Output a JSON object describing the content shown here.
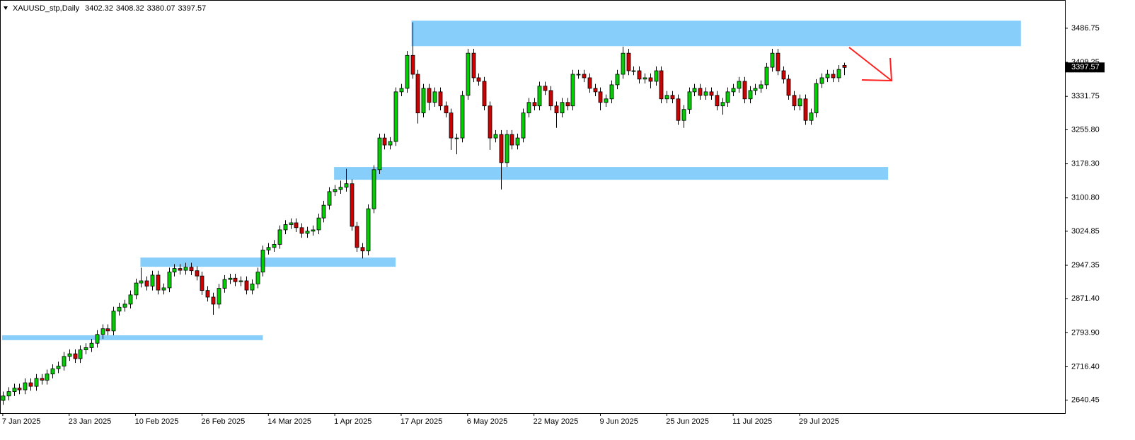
{
  "chart_data": {
    "type": "candlestick",
    "title": "XAUUSD_stp,Daily",
    "categories": [
      "7 Jan 2025",
      null,
      null,
      null,
      null,
      null,
      null,
      null,
      null,
      null,
      null,
      null,
      "23 Jan 2025",
      null,
      null,
      null,
      null,
      null,
      null,
      null,
      null,
      null,
      null,
      null,
      "10 Feb 2025",
      null,
      null,
      null,
      null,
      null,
      null,
      null,
      null,
      null,
      null,
      null,
      "26 Feb 2025",
      null,
      null,
      null,
      null,
      null,
      null,
      null,
      null,
      null,
      null,
      null,
      "14 Mar 2025",
      null,
      null,
      null,
      null,
      null,
      null,
      null,
      null,
      null,
      null,
      null,
      "1 Apr 2025",
      null,
      null,
      null,
      null,
      null,
      null,
      null,
      null,
      null,
      null,
      null,
      "17 Apr 2025",
      null,
      null,
      null,
      null,
      null,
      null,
      null,
      null,
      null,
      null,
      null,
      "6 May 2025",
      null,
      null,
      null,
      null,
      null,
      null,
      null,
      null,
      null,
      null,
      null,
      "22 May 2025",
      null,
      null,
      null,
      null,
      null,
      null,
      null,
      null,
      null,
      null,
      null,
      "9 Jun 2025",
      null,
      null,
      null,
      null,
      null,
      null,
      null,
      null,
      null,
      null,
      null,
      "25 Jun 2025",
      null,
      null,
      null,
      null,
      null,
      null,
      null,
      null,
      null,
      null,
      null,
      "11 Jul 2025",
      null,
      null,
      null,
      null,
      null,
      null,
      null,
      null,
      null,
      null,
      null,
      "29 Jul 2025",
      null,
      null,
      null,
      null,
      null,
      null,
      null,
      null
    ],
    "open": [
      2640,
      2650,
      2660,
      2668,
      2664,
      2680,
      2672,
      2690,
      2686,
      2700,
      2712,
      2718,
      2740,
      2746,
      2735,
      2755,
      2760,
      2770,
      2790,
      2803,
      2798,
      2843,
      2852,
      2859,
      2880,
      2907,
      2912,
      2900,
      2925,
      2891,
      2896,
      2932,
      2940,
      2936,
      2943,
      2935,
      2923,
      2890,
      2875,
      2859,
      2895,
      2915,
      2918,
      2910,
      2912,
      2891,
      2905,
      2932,
      2982,
      2988,
      2995,
      3028,
      3040,
      3044,
      3033,
      3020,
      3025,
      3028,
      3055,
      3084,
      3115,
      3120,
      3125,
      3133,
      3036,
      2988,
      2980,
      3076,
      3165,
      3237,
      3221,
      3229,
      3342,
      3350,
      3425,
      3382,
      3294,
      3350,
      3318,
      3342,
      3310,
      3294,
      3237,
      3237,
      3334,
      3430,
      3374,
      3366,
      3310,
      3237,
      3245,
      3181,
      3245,
      3221,
      3237,
      3294,
      3318,
      3310,
      3355,
      3345,
      3310,
      3294,
      3318,
      3310,
      3382,
      3382,
      3374,
      3350,
      3342,
      3318,
      3326,
      3358,
      3382,
      3430,
      3390,
      3390,
      3371,
      3374,
      3366,
      3390,
      3326,
      3334,
      3326,
      3277,
      3302,
      3342,
      3350,
      3334,
      3342,
      3334,
      3310,
      3318,
      3342,
      3350,
      3366,
      3326,
      3345,
      3350,
      3358,
      3398,
      3430,
      3390,
      3371,
      3334,
      3310,
      3326,
      3277,
      3294,
      3361,
      3374,
      3382,
      3374,
      3402.32
    ],
    "high": [
      2660,
      2670,
      2678,
      2678,
      2690,
      2690,
      2700,
      2700,
      2710,
      2722,
      2728,
      2750,
      2756,
      2756,
      2765,
      2770,
      2780,
      2800,
      2813,
      2813,
      2853,
      2862,
      2869,
      2890,
      2917,
      2942,
      2922,
      2935,
      2935,
      2906,
      2942,
      2950,
      2950,
      2953,
      2953,
      2945,
      2933,
      2900,
      2885,
      2905,
      2925,
      2928,
      2928,
      2922,
      2922,
      2915,
      2942,
      2992,
      2998,
      3005,
      3038,
      3050,
      3054,
      3054,
      3043,
      3035,
      3038,
      3065,
      3094,
      3125,
      3130,
      3140,
      3167,
      3143,
      3046,
      2998,
      3086,
      3175,
      3247,
      3247,
      3239,
      3352,
      3360,
      3435,
      3500,
      3392,
      3360,
      3360,
      3352,
      3352,
      3320,
      3304,
      3247,
      3344,
      3440,
      3440,
      3384,
      3376,
      3320,
      3255,
      3255,
      3255,
      3255,
      3247,
      3304,
      3328,
      3328,
      3365,
      3365,
      3355,
      3320,
      3328,
      3328,
      3392,
      3392,
      3392,
      3384,
      3360,
      3352,
      3336,
      3368,
      3392,
      3445,
      3440,
      3400,
      3400,
      3384,
      3384,
      3400,
      3400,
      3344,
      3344,
      3336,
      3312,
      3352,
      3360,
      3360,
      3352,
      3352,
      3344,
      3328,
      3352,
      3360,
      3376,
      3376,
      3355,
      3360,
      3368,
      3408,
      3440,
      3440,
      3400,
      3381,
      3344,
      3336,
      3336,
      3304,
      3371,
      3384,
      3392,
      3392,
      3403,
      3408.32
    ],
    "low": [
      2630,
      2640,
      2650,
      2654,
      2654,
      2662,
      2662,
      2676,
      2676,
      2690,
      2702,
      2708,
      2730,
      2725,
      2725,
      2745,
      2750,
      2760,
      2780,
      2788,
      2788,
      2833,
      2842,
      2849,
      2870,
      2897,
      2890,
      2890,
      2881,
      2881,
      2886,
      2922,
      2926,
      2926,
      2925,
      2913,
      2880,
      2865,
      2835,
      2849,
      2885,
      2905,
      2900,
      2900,
      2881,
      2881,
      2895,
      2922,
      2972,
      2978,
      2985,
      3018,
      3030,
      3023,
      3010,
      3010,
      3015,
      3018,
      3045,
      3074,
      3105,
      3110,
      3115,
      3026,
      2978,
      2963,
      2970,
      3066,
      3155,
      3211,
      3211,
      3219,
      3332,
      3340,
      3372,
      3270,
      3284,
      3300,
      3308,
      3300,
      3284,
      3210,
      3200,
      3227,
      3324,
      3364,
      3356,
      3300,
      3210,
      3227,
      3120,
      3171,
      3211,
      3211,
      3227,
      3284,
      3300,
      3300,
      3335,
      3300,
      3260,
      3284,
      3300,
      3300,
      3372,
      3364,
      3340,
      3332,
      3300,
      3308,
      3316,
      3348,
      3372,
      3380,
      3380,
      3361,
      3361,
      3350,
      3356,
      3316,
      3316,
      3316,
      3267,
      3260,
      3292,
      3332,
      3324,
      3324,
      3324,
      3300,
      3290,
      3308,
      3332,
      3340,
      3316,
      3316,
      3335,
      3340,
      3348,
      3388,
      3380,
      3361,
      3324,
      3300,
      3300,
      3267,
      3267,
      3284,
      3351,
      3364,
      3364,
      3364,
      3380.07
    ],
    "close": [
      2650,
      2660,
      2668,
      2664,
      2680,
      2672,
      2690,
      2686,
      2700,
      2712,
      2718,
      2740,
      2746,
      2735,
      2755,
      2760,
      2770,
      2790,
      2803,
      2798,
      2843,
      2852,
      2859,
      2880,
      2907,
      2912,
      2900,
      2925,
      2891,
      2896,
      2932,
      2940,
      2936,
      2943,
      2935,
      2923,
      2890,
      2875,
      2859,
      2895,
      2915,
      2918,
      2910,
      2912,
      2891,
      2905,
      2932,
      2982,
      2988,
      2995,
      3028,
      3040,
      3044,
      3033,
      3020,
      3025,
      3028,
      3055,
      3084,
      3115,
      3120,
      3125,
      3133,
      3036,
      2988,
      2980,
      3076,
      3165,
      3237,
      3221,
      3229,
      3342,
      3350,
      3425,
      3382,
      3294,
      3350,
      3318,
      3342,
      3310,
      3294,
      3237,
      3237,
      3334,
      3430,
      3374,
      3366,
      3310,
      3237,
      3245,
      3181,
      3245,
      3221,
      3237,
      3294,
      3318,
      3310,
      3355,
      3345,
      3310,
      3294,
      3318,
      3310,
      3382,
      3382,
      3374,
      3350,
      3342,
      3318,
      3326,
      3358,
      3382,
      3430,
      3390,
      3390,
      3371,
      3374,
      3366,
      3390,
      3326,
      3334,
      3326,
      3277,
      3302,
      3342,
      3350,
      3334,
      3342,
      3334,
      3310,
      3318,
      3342,
      3350,
      3366,
      3326,
      3345,
      3350,
      3358,
      3398,
      3430,
      3390,
      3371,
      3334,
      3310,
      3326,
      3277,
      3294,
      3361,
      3374,
      3382,
      3374,
      3393,
      3397.57
    ],
    "up_color": "#00d000",
    "down_color": "#d00000",
    "zones": [
      {
        "start": 74,
        "end": 184,
        "range": [
          3446,
          3504
        ]
      },
      {
        "start": 60,
        "end": 160,
        "range": [
          3142,
          3171
        ]
      },
      {
        "start": 25,
        "end": 71,
        "range": [
          2944,
          2965
        ]
      },
      {
        "start": 0,
        "end": 47,
        "range": [
          2777,
          2788
        ]
      }
    ],
    "zone_color": "#87cefa",
    "ylim": [
      2611,
      3551
    ],
    "yticks": [
      2640.45,
      {
        "value": 2716.4,
        "label": "2716.40"
      },
      {
        "value": 2793.9,
        "label": "2793.90"
      },
      {
        "value": 2871.4,
        "label": "2871.40"
      },
      2947.35,
      3024.85,
      {
        "value": 3100.8,
        "label": "3100.80"
      },
      {
        "value": 3178.3,
        "label": "3178.30"
      },
      {
        "value": 3255.8,
        "label": "3255.80"
      },
      3331.75,
      3409.25,
      3486.75
    ]
  }
}
